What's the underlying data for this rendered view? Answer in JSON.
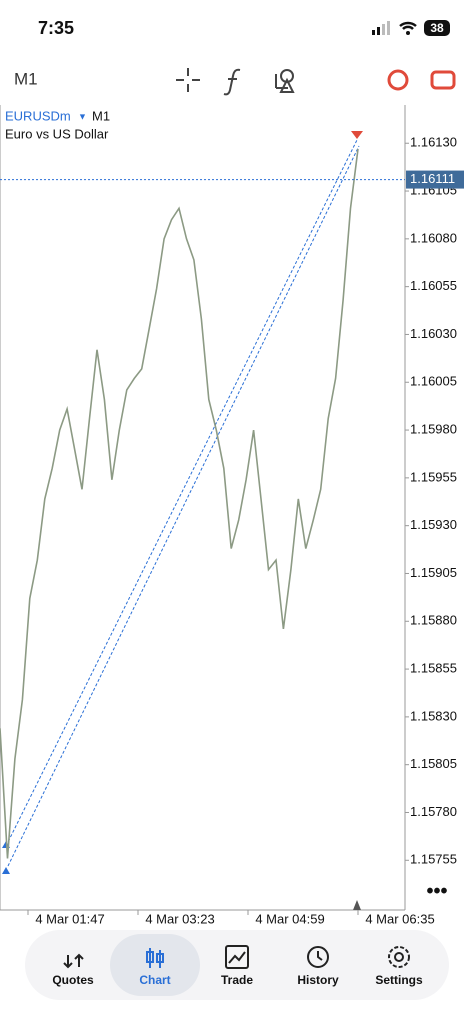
{
  "status_bar": {
    "time": "7:35",
    "battery": "38"
  },
  "toolbar": {
    "timeframe": "M1"
  },
  "chart_data": {
    "type": "line",
    "symbol": "EURUSDm",
    "timeframe": "M1",
    "description": "Euro vs US Dollar",
    "color": "#8c9a84",
    "current_price": 1.16111,
    "xlabels": [
      "4 Mar 01:47",
      "4 Mar 03:23",
      "4 Mar 04:59",
      "4 Mar 06:35"
    ],
    "ylim": [
      1.15729,
      1.1615
    ],
    "yticks": [
      {
        "value": 1.1613,
        "label": "1.16130"
      },
      1.16105,
      {
        "value": 1.1608,
        "label": "1.16080"
      },
      1.16055,
      {
        "value": 1.1603,
        "label": "1.16030"
      },
      1.16005,
      {
        "value": 1.1598,
        "label": "1.15980"
      },
      1.15955,
      {
        "value": 1.1593,
        "label": "1.15930"
      },
      1.15905,
      {
        "value": 1.1588,
        "label": "1.15880"
      },
      1.15855,
      {
        "value": 1.1583,
        "label": "1.15830"
      },
      1.15805,
      {
        "value": 1.1578,
        "label": "1.15780"
      },
      1.15755
    ],
    "values": [
      1.15824,
      1.15756,
      1.15808,
      1.15839,
      1.15892,
      1.15912,
      1.15944,
      1.1596,
      1.1598,
      1.15991,
      1.1597,
      1.15949,
      1.15986,
      1.16022,
      1.15996,
      1.15954,
      1.1598,
      1.16001,
      1.16007,
      1.16012,
      1.16033,
      1.16054,
      1.1608,
      1.1609,
      1.16096,
      1.1608,
      1.16069,
      1.16038,
      1.15996,
      1.1598,
      1.1596,
      1.15918,
      1.15933,
      1.15954,
      1.1598,
      1.15944,
      1.15907,
      1.15912,
      1.15876,
      1.15907,
      1.15944,
      1.15918,
      1.15933,
      1.15949,
      1.15986,
      1.16007,
      1.16048,
      1.16096,
      1.16127
    ]
  },
  "nav": [
    "Quotes",
    "Chart",
    "Trade",
    "History",
    "Settings"
  ]
}
